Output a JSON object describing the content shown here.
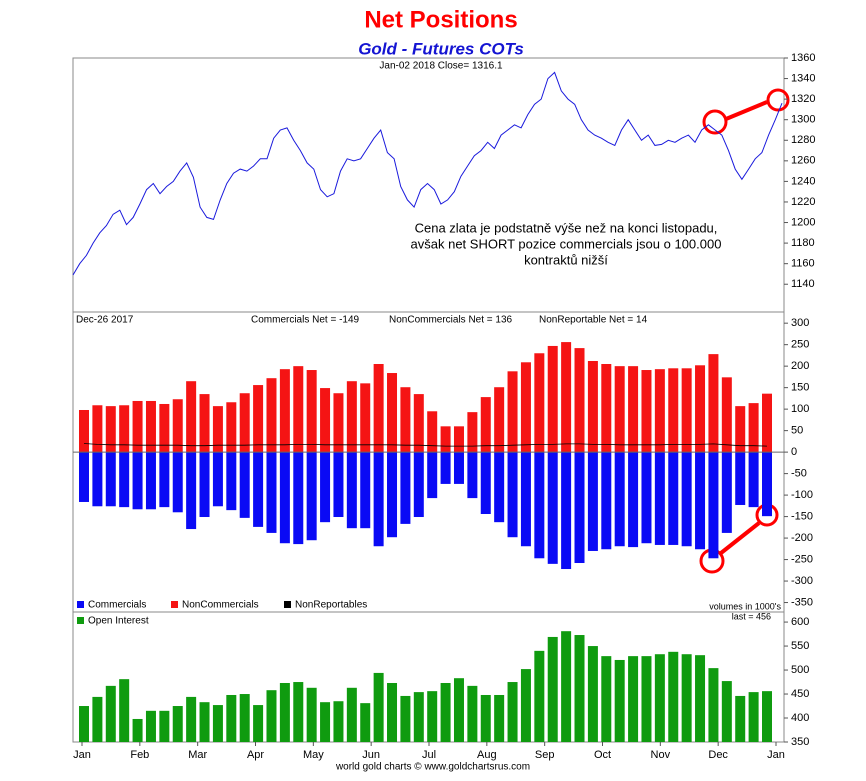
{
  "title": "Net Positions",
  "subtitle": "Gold - Futures COTs",
  "footer": "world gold charts © www.goldchartsrus.com",
  "months": [
    "Jan",
    "Feb",
    "Mar",
    "Apr",
    "May",
    "Jun",
    "Jul",
    "Aug",
    "Sep",
    "Oct",
    "Nov",
    "Dec",
    "Jan"
  ],
  "chart_data": [
    {
      "type": "line",
      "header": "Jan-02 2018  Close= 1316.1",
      "annotation": [
        "Cena zlata je podstatně výše než na konci listopadu,",
        "avšak net SHORT pozice commercials jsou o 100.000",
        "kontraktů nižší"
      ],
      "ylim": [
        1113,
        1360
      ],
      "yticks": [
        1140,
        1160,
        1180,
        1200,
        1220,
        1240,
        1260,
        1280,
        1300,
        1320,
        1340,
        1360
      ],
      "color": "#1a1adc",
      "values": [
        1149,
        1160,
        1168,
        1180,
        1190,
        1197,
        1208,
        1212,
        1198,
        1205,
        1218,
        1232,
        1238,
        1228,
        1235,
        1240,
        1250,
        1258,
        1244,
        1215,
        1205,
        1203,
        1222,
        1238,
        1248,
        1252,
        1250,
        1255,
        1262,
        1262,
        1282,
        1290,
        1292,
        1280,
        1270,
        1258,
        1252,
        1232,
        1225,
        1228,
        1250,
        1262,
        1260,
        1262,
        1272,
        1282,
        1290,
        1268,
        1262,
        1235,
        1222,
        1215,
        1232,
        1238,
        1232,
        1218,
        1222,
        1230,
        1245,
        1255,
        1265,
        1270,
        1278,
        1272,
        1285,
        1290,
        1295,
        1292,
        1305,
        1315,
        1320,
        1340,
        1346,
        1328,
        1320,
        1315,
        1300,
        1290,
        1285,
        1282,
        1278,
        1275,
        1290,
        1300,
        1290,
        1280,
        1285,
        1275,
        1276,
        1280,
        1278,
        1282,
        1285,
        1278,
        1290,
        1295,
        1290,
        1285,
        1270,
        1252,
        1242,
        1252,
        1262,
        1268,
        1285,
        1300,
        1316
      ]
    },
    {
      "type": "bar",
      "header": [
        "Dec-26  2017",
        "Commercials Net = -149",
        "NonCommercials Net = 136",
        "NonReportable Net = 14"
      ],
      "note": "volumes in 1000's",
      "ylim": [
        -372,
        326
      ],
      "yticks": [
        -350,
        -300,
        -250,
        -200,
        -150,
        -100,
        -50,
        0,
        50,
        100,
        150,
        200,
        250,
        300
      ],
      "series": [
        {
          "name": "Commercials",
          "color": "#0a0af5",
          "values": [
            -116,
            -126,
            -126,
            -128,
            -133,
            -133,
            -128,
            -140,
            -179,
            -151,
            -126,
            -135,
            -153,
            -174,
            -188,
            -212,
            -214,
            -205,
            -163,
            -151,
            -177,
            -177,
            -219,
            -198,
            -167,
            -151,
            -107,
            -74,
            -74,
            -107,
            -144,
            -163,
            -198,
            -219,
            -247,
            -260,
            -272,
            -258,
            -230,
            -226,
            -219,
            -221,
            -212,
            -216,
            -216,
            -219,
            -226,
            -247,
            -188,
            -123,
            -128,
            -149
          ]
        },
        {
          "name": "NonCommercials",
          "color": "#f51414",
          "values": [
            98,
            109,
            107,
            109,
            119,
            119,
            112,
            123,
            165,
            135,
            107,
            116,
            137,
            156,
            172,
            193,
            200,
            191,
            149,
            137,
            165,
            160,
            205,
            184,
            151,
            135,
            95,
            60,
            60,
            93,
            128,
            151,
            188,
            209,
            230,
            247,
            256,
            242,
            212,
            205,
            200,
            200,
            191,
            193,
            195,
            195,
            202,
            228,
            174,
            107,
            114,
            136
          ]
        },
        {
          "name": "NonReportables",
          "color": "#000000",
          "values": [
            20,
            18,
            17,
            17,
            16,
            16,
            16,
            16,
            15,
            15,
            16,
            16,
            16,
            17,
            17,
            17,
            18,
            18,
            17,
            17,
            17,
            17,
            17,
            17,
            16,
            16,
            15,
            14,
            14,
            14,
            15,
            15,
            16,
            17,
            18,
            18,
            19,
            19,
            18,
            18,
            17,
            17,
            17,
            17,
            18,
            18,
            18,
            19,
            17,
            15,
            15,
            14
          ]
        }
      ]
    },
    {
      "type": "bar",
      "name": "Open Interest",
      "header": "last = 456",
      "color": "#0f9b0f",
      "ylim": [
        350,
        621
      ],
      "yticks": [
        350,
        400,
        450,
        500,
        550,
        600
      ],
      "values": [
        425,
        444,
        467,
        481,
        398,
        415,
        415,
        425,
        444,
        433,
        427,
        448,
        450,
        427,
        458,
        473,
        475,
        463,
        433,
        435,
        463,
        431,
        494,
        473,
        446,
        454,
        456,
        473,
        483,
        467,
        448,
        448,
        475,
        502,
        540,
        569,
        581,
        573,
        550,
        529,
        521,
        529,
        529,
        533,
        538,
        533,
        531,
        504,
        477,
        446,
        454,
        456
      ]
    }
  ]
}
